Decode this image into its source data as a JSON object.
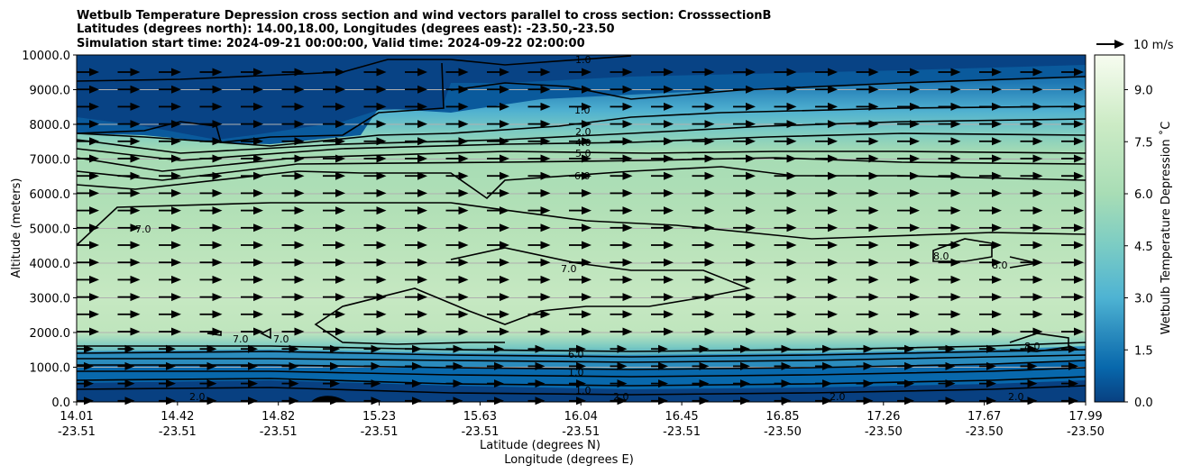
{
  "chart_data": {
    "type": "contour",
    "title_lines": [
      "Wetbulb Temperature Depression cross section and wind vectors parallel to cross section: CrosssectionB",
      "Latitudes (degrees north): 14.00,18.00, Longitudes (degrees east): -23.50,-23.50",
      "Simulation start time: 2024-09-21 00:00:00, Valid time: 2024-09-22 02:00:00"
    ],
    "ylabel": "Altitude (meters)",
    "xlabel_lines": [
      "Latitude (degrees N)",
      "Longitude (degrees E)"
    ],
    "ylim": [
      0,
      10000
    ],
    "y_ticks": [
      "0.0",
      "1000.0",
      "2000.0",
      "3000.0",
      "4000.0",
      "5000.0",
      "6000.0",
      "7000.0",
      "8000.0",
      "9000.0",
      "10000.0"
    ],
    "y_tick_values": [
      0,
      1000,
      2000,
      3000,
      4000,
      5000,
      6000,
      7000,
      8000,
      9000,
      10000
    ],
    "x_ticks": [
      {
        "lat": "14.01",
        "lon": "-23.51"
      },
      {
        "lat": "14.42",
        "lon": "-23.51"
      },
      {
        "lat": "14.82",
        "lon": "-23.51"
      },
      {
        "lat": "15.23",
        "lon": "-23.51"
      },
      {
        "lat": "15.63",
        "lon": "-23.51"
      },
      {
        "lat": "16.04",
        "lon": "-23.51"
      },
      {
        "lat": "16.45",
        "lon": "-23.51"
      },
      {
        "lat": "16.85",
        "lon": "-23.50"
      },
      {
        "lat": "17.26",
        "lon": "-23.50"
      },
      {
        "lat": "17.67",
        "lon": "-23.50"
      },
      {
        "lat": "17.99",
        "lon": "-23.50"
      }
    ],
    "colorbar": {
      "label": "Wetbulb Temperature Depression ˚C",
      "ticks": [
        "0.0",
        "1.5",
        "3.0",
        "4.5",
        "6.0",
        "7.5",
        "9.0"
      ],
      "tick_values": [
        0,
        1.5,
        3,
        4.5,
        6,
        7.5,
        9
      ],
      "range": [
        0,
        10
      ],
      "colormap": "GnBu_r",
      "levels": 20
    },
    "quiver_key": "10 m/s",
    "grid": "horizontal",
    "approx_profile": {
      "altitude": [
        0,
        300,
        700,
        1000,
        1400,
        2000,
        3000,
        4000,
        5000,
        6000,
        7000,
        7500,
        8000,
        9000,
        10000
      ],
      "wbtd": [
        1.0,
        1.8,
        2.5,
        3.5,
        6.0,
        7.3,
        7.8,
        7.5,
        7.0,
        6.5,
        5.5,
        3.5,
        2.5,
        1.5,
        1.0
      ]
    },
    "contour_labels": [
      "1.0",
      "2.0",
      "4.0",
      "5.0",
      "6.0",
      "7.0",
      "8.0"
    ]
  },
  "colors": {
    "dark_blue": "#084081",
    "mid_blue": "#2b8cbe",
    "light_green": "#c8e8c2",
    "contour": "#000000"
  }
}
